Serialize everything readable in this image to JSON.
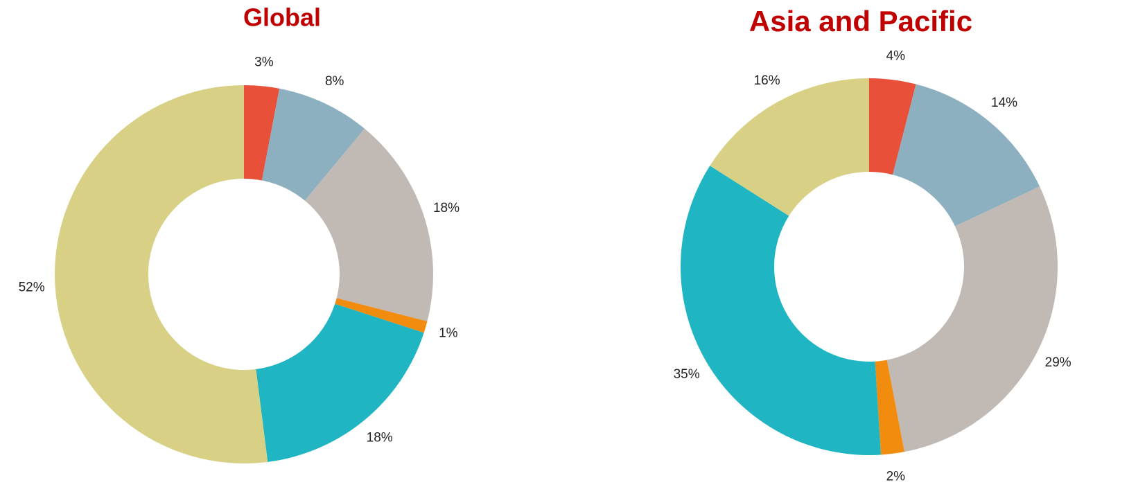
{
  "chart_data": [
    {
      "type": "donut",
      "title": "Global",
      "values": [
        3,
        8,
        18,
        1,
        18,
        52
      ],
      "value_labels": [
        "3%",
        "8%",
        "18%",
        "1%",
        "18%",
        "52%"
      ],
      "colors": [
        "#e8503a",
        "#8db0c0",
        "#c1b9b3",
        "#f28c0f",
        "#20b5c2",
        "#d8d085"
      ]
    },
    {
      "type": "donut",
      "title": "Asia and Pacific",
      "values": [
        4,
        14,
        29,
        2,
        35,
        16
      ],
      "value_labels": [
        "4%",
        "14%",
        "29%",
        "2%",
        "35%",
        "16%"
      ],
      "colors": [
        "#e8503a",
        "#8db0c0",
        "#c1b9b3",
        "#f28c0f",
        "#20b5c2",
        "#d8d085"
      ]
    }
  ]
}
